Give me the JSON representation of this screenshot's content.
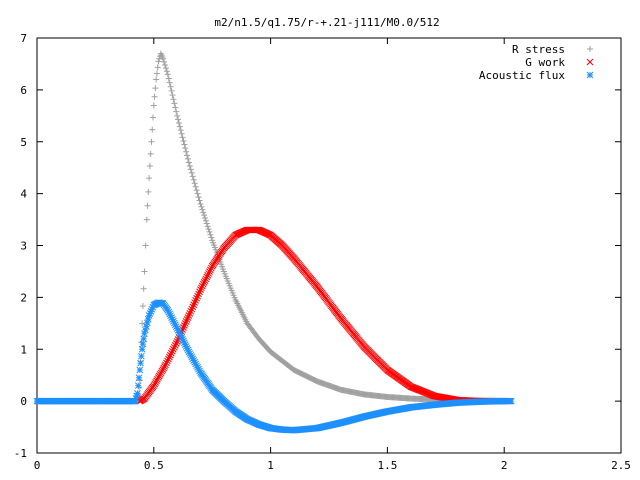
{
  "chart_data": {
    "type": "scatter",
    "title": "m2/n1.5/q1.75/r-+.21-j111/M0.0/512",
    "xlabel": "",
    "ylabel": "",
    "xlim": [
      0,
      2.5
    ],
    "ylim": [
      -1,
      7
    ],
    "x_ticks": [
      "0",
      "0.5",
      "1",
      "1.5",
      "2",
      "2.5"
    ],
    "y_ticks": [
      "-1",
      "0",
      "1",
      "2",
      "3",
      "4",
      "5",
      "6",
      "7"
    ],
    "grid": false,
    "legend_position": "top-right",
    "series": [
      {
        "name": "R stress",
        "color": "#a0a0a0",
        "marker": "plus",
        "x": [
          0.0,
          0.1,
          0.2,
          0.3,
          0.4,
          0.43,
          0.44,
          0.45,
          0.46,
          0.47,
          0.48,
          0.49,
          0.5,
          0.51,
          0.52,
          0.53,
          0.54,
          0.56,
          0.58,
          0.6,
          0.65,
          0.7,
          0.75,
          0.8,
          0.85,
          0.9,
          0.95,
          1.0,
          1.1,
          1.2,
          1.3,
          1.4,
          1.5,
          1.6,
          1.7,
          1.8,
          1.9,
          2.0
        ],
        "y": [
          0.0,
          0.0,
          0.0,
          0.0,
          0.0,
          0.0,
          0.4,
          1.5,
          2.5,
          3.5,
          4.3,
          5.0,
          5.7,
          6.2,
          6.55,
          6.7,
          6.6,
          6.3,
          5.9,
          5.5,
          4.6,
          3.8,
          3.1,
          2.5,
          1.95,
          1.5,
          1.2,
          0.95,
          0.6,
          0.38,
          0.22,
          0.13,
          0.08,
          0.05,
          0.03,
          0.02,
          0.01,
          0.0
        ]
      },
      {
        "name": "G work",
        "color": "#ff0000",
        "marker": "cross",
        "x": [
          0.44,
          0.46,
          0.5,
          0.55,
          0.6,
          0.65,
          0.7,
          0.75,
          0.8,
          0.85,
          0.9,
          0.95,
          1.0,
          1.05,
          1.1,
          1.2,
          1.3,
          1.4,
          1.5,
          1.6,
          1.7,
          1.8,
          1.9,
          2.0
        ],
        "y": [
          0.0,
          0.05,
          0.3,
          0.7,
          1.15,
          1.65,
          2.15,
          2.6,
          2.95,
          3.2,
          3.3,
          3.3,
          3.2,
          3.0,
          2.75,
          2.2,
          1.6,
          1.05,
          0.6,
          0.28,
          0.1,
          0.02,
          0.0,
          0.0
        ]
      },
      {
        "name": "Acoustic flux",
        "color": "#1e90ff",
        "marker": "star",
        "x": [
          0.0,
          0.1,
          0.2,
          0.3,
          0.4,
          0.42,
          0.43,
          0.44,
          0.45,
          0.46,
          0.48,
          0.5,
          0.52,
          0.54,
          0.56,
          0.6,
          0.65,
          0.7,
          0.75,
          0.8,
          0.85,
          0.9,
          0.95,
          1.0,
          1.05,
          1.1,
          1.2,
          1.3,
          1.4,
          1.5,
          1.6,
          1.7,
          1.8,
          1.9,
          2.0,
          2.03
        ],
        "y": [
          0.0,
          0.0,
          0.0,
          0.0,
          0.0,
          0.0,
          0.15,
          0.6,
          1.0,
          1.3,
          1.65,
          1.85,
          1.9,
          1.88,
          1.75,
          1.4,
          0.95,
          0.55,
          0.22,
          0.0,
          -0.2,
          -0.35,
          -0.45,
          -0.52,
          -0.55,
          -0.56,
          -0.52,
          -0.42,
          -0.3,
          -0.2,
          -0.12,
          -0.07,
          -0.03,
          -0.01,
          0.0,
          0.0
        ]
      }
    ]
  }
}
